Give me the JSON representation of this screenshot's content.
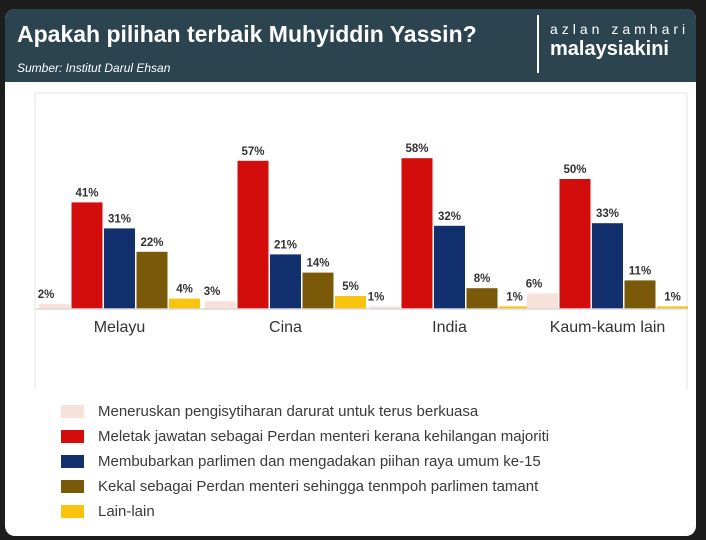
{
  "header": {
    "title": "Apakah pilihan terbaik Muhyiddin Yassin?",
    "subtitle": "Sumber: Institut Darul Ehsan",
    "credit": "azlan zamhari",
    "brand": "malaysiakini"
  },
  "chart_data": {
    "type": "bar",
    "categories": [
      "Melayu",
      "Cina",
      "India",
      "Kaum-kaum lain"
    ],
    "series": [
      {
        "name": "Meneruskan pengisytiharan darurat untuk terus berkuasa",
        "values": [
          2,
          3,
          1,
          6
        ]
      },
      {
        "name": "Meletak jawatan sebagai Perdan menteri kerana kehilangan majoriti",
        "values": [
          41,
          57,
          58,
          50
        ]
      },
      {
        "name": "Membubarkan parlimen dan mengadakan piihan raya umum ke-15",
        "values": [
          31,
          21,
          32,
          33
        ]
      },
      {
        "name": "Kekal sebagai Perdan menteri sehingga tenmpoh parlimen tamant",
        "values": [
          22,
          14,
          8,
          11
        ]
      },
      {
        "name": "Lain-lain",
        "values": [
          4,
          5,
          1,
          1
        ]
      }
    ],
    "data_labels": [
      [
        "2%",
        "41%",
        "31%",
        "22%",
        "4%"
      ],
      [
        "3%",
        "57%",
        "21%",
        "14%",
        "5%"
      ],
      [
        "1%",
        "58%",
        "32%",
        "8%",
        "1%"
      ],
      [
        "6%",
        "50%",
        "33%",
        "11%",
        "1%"
      ]
    ],
    "colors": [
      "#f7e1d8",
      "#d30c0c",
      "#13306e",
      "#7a5a08",
      "#f8c40e"
    ],
    "ylim": [
      0,
      60
    ],
    "grid": false,
    "legend_position": "bottom"
  }
}
